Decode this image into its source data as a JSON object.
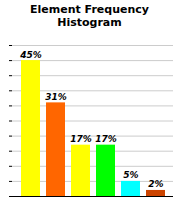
{
  "chart_data": {
    "type": "bar",
    "title": "Element Frequency\nHistogram",
    "categories": [
      null,
      null,
      null,
      null,
      null,
      null
    ],
    "values": [
      45,
      31,
      17,
      17,
      5,
      2
    ],
    "value_labels": [
      "45%",
      "31%",
      "17%",
      "17%",
      "5%",
      "2%"
    ],
    "colors": [
      "#FFFF00",
      "#FF6600",
      "#FFFF00",
      "#00FF00",
      "#00FFFF",
      "#CC4400"
    ],
    "ylim": [
      0,
      50
    ],
    "yticks": [
      0,
      5,
      10,
      15,
      20,
      25,
      30,
      35,
      40,
      45,
      50
    ],
    "grid": true,
    "data_labels": true,
    "tick_labels": false
  }
}
